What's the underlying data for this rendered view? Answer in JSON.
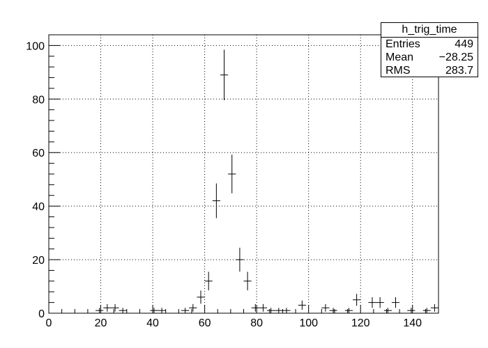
{
  "chart_data": {
    "type": "histogram",
    "title": "",
    "xlabel": "",
    "ylabel": "",
    "xlim": [
      0,
      150
    ],
    "ylim": [
      0,
      104
    ],
    "bin_width": 3,
    "grid": true,
    "x_ticks": [
      0,
      20,
      40,
      60,
      80,
      100,
      120,
      140
    ],
    "y_ticks": [
      0,
      20,
      40,
      60,
      80,
      100
    ],
    "series": [
      {
        "x": [
          19.5,
          22.5,
          25.5,
          28.5,
          40.5,
          43.5,
          52.5,
          55.5,
          58.5,
          61.5,
          64.5,
          67.5,
          70.5,
          73.5,
          76.5,
          79.5,
          82.5,
          85.5,
          88.5,
          91.5,
          97.5,
          106.5,
          109.5,
          115.5,
          118.5,
          124.5,
          127.5,
          130.5,
          133.5,
          139.5,
          145.5,
          148.5
        ],
        "values": [
          1,
          2,
          2,
          1,
          1,
          1,
          1,
          2,
          6,
          12,
          42,
          89,
          52,
          20,
          12,
          2,
          2,
          1,
          1,
          1,
          3,
          2,
          1,
          1,
          5,
          4,
          4,
          1,
          4,
          1,
          1,
          2
        ]
      }
    ],
    "stats": {
      "name": "h_trig_time",
      "rows": [
        {
          "label": "Entries",
          "value": "449"
        },
        {
          "label": "Mean",
          "value": "−28.25"
        },
        {
          "label": "RMS",
          "value": "283.7"
        }
      ]
    }
  }
}
